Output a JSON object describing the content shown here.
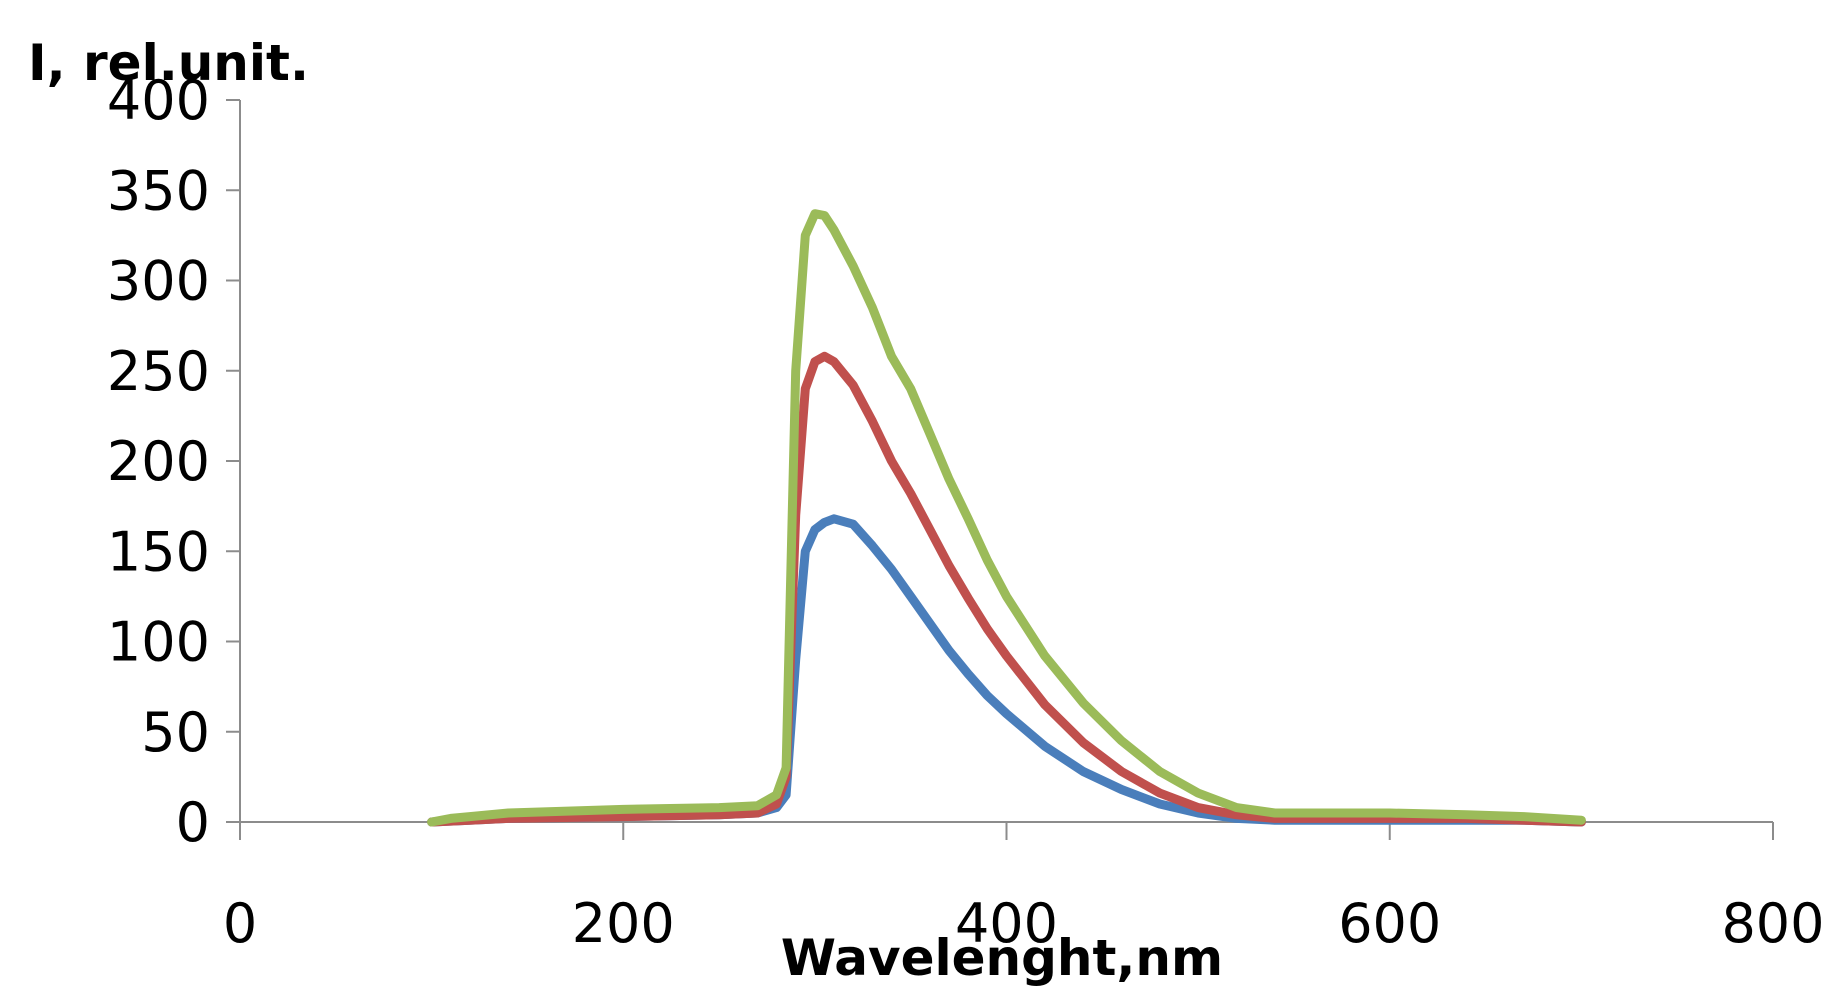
{
  "chart_data": {
    "type": "line",
    "title": "",
    "xlabel": "Wavelenght,nm",
    "ylabel": "I, rel.unit.",
    "xlim": [
      0,
      800
    ],
    "ylim": [
      0,
      400
    ],
    "x_ticks": [
      0,
      200,
      400,
      600,
      800
    ],
    "y_ticks": [
      0,
      50,
      100,
      150,
      200,
      250,
      300,
      350,
      400
    ],
    "grid": false,
    "legend": "none",
    "series": [
      {
        "color": "#4a7ebb",
        "points": [
          [
            100,
            0
          ],
          [
            120,
            1
          ],
          [
            140,
            2
          ],
          [
            200,
            3
          ],
          [
            250,
            4
          ],
          [
            270,
            5
          ],
          [
            280,
            8
          ],
          [
            285,
            15
          ],
          [
            290,
            90
          ],
          [
            295,
            150
          ],
          [
            300,
            162
          ],
          [
            305,
            166
          ],
          [
            310,
            168
          ],
          [
            320,
            165
          ],
          [
            330,
            153
          ],
          [
            340,
            140
          ],
          [
            350,
            125
          ],
          [
            360,
            110
          ],
          [
            370,
            95
          ],
          [
            380,
            82
          ],
          [
            390,
            70
          ],
          [
            400,
            60
          ],
          [
            420,
            42
          ],
          [
            440,
            28
          ],
          [
            460,
            18
          ],
          [
            480,
            10
          ],
          [
            500,
            5
          ],
          [
            520,
            2
          ],
          [
            540,
            1
          ],
          [
            560,
            1
          ],
          [
            600,
            1
          ],
          [
            640,
            1
          ],
          [
            670,
            1
          ],
          [
            700,
            0
          ]
        ]
      },
      {
        "color": "#c0504d",
        "points": [
          [
            100,
            0
          ],
          [
            120,
            1
          ],
          [
            140,
            2
          ],
          [
            200,
            3
          ],
          [
            250,
            4
          ],
          [
            270,
            5
          ],
          [
            280,
            10
          ],
          [
            285,
            25
          ],
          [
            290,
            170
          ],
          [
            295,
            240
          ],
          [
            300,
            255
          ],
          [
            305,
            258
          ],
          [
            310,
            255
          ],
          [
            320,
            242
          ],
          [
            330,
            222
          ],
          [
            340,
            200
          ],
          [
            350,
            182
          ],
          [
            360,
            162
          ],
          [
            370,
            142
          ],
          [
            380,
            124
          ],
          [
            390,
            107
          ],
          [
            400,
            92
          ],
          [
            420,
            65
          ],
          [
            440,
            44
          ],
          [
            460,
            28
          ],
          [
            480,
            16
          ],
          [
            500,
            8
          ],
          [
            520,
            4
          ],
          [
            540,
            2
          ],
          [
            560,
            2
          ],
          [
            600,
            2
          ],
          [
            640,
            2
          ],
          [
            670,
            1
          ],
          [
            700,
            0
          ]
        ]
      },
      {
        "color": "#9bbb59",
        "points": [
          [
            100,
            0
          ],
          [
            110,
            2
          ],
          [
            120,
            3
          ],
          [
            140,
            5
          ],
          [
            200,
            7
          ],
          [
            250,
            8
          ],
          [
            270,
            9
          ],
          [
            280,
            15
          ],
          [
            285,
            30
          ],
          [
            290,
            250
          ],
          [
            295,
            325
          ],
          [
            300,
            337
          ],
          [
            305,
            336
          ],
          [
            310,
            328
          ],
          [
            320,
            308
          ],
          [
            330,
            285
          ],
          [
            340,
            258
          ],
          [
            350,
            240
          ],
          [
            360,
            215
          ],
          [
            370,
            190
          ],
          [
            380,
            168
          ],
          [
            390,
            145
          ],
          [
            400,
            125
          ],
          [
            420,
            92
          ],
          [
            440,
            66
          ],
          [
            460,
            45
          ],
          [
            480,
            28
          ],
          [
            500,
            16
          ],
          [
            520,
            8
          ],
          [
            540,
            5
          ],
          [
            560,
            5
          ],
          [
            600,
            5
          ],
          [
            640,
            4
          ],
          [
            670,
            3
          ],
          [
            700,
            1
          ]
        ]
      }
    ]
  }
}
